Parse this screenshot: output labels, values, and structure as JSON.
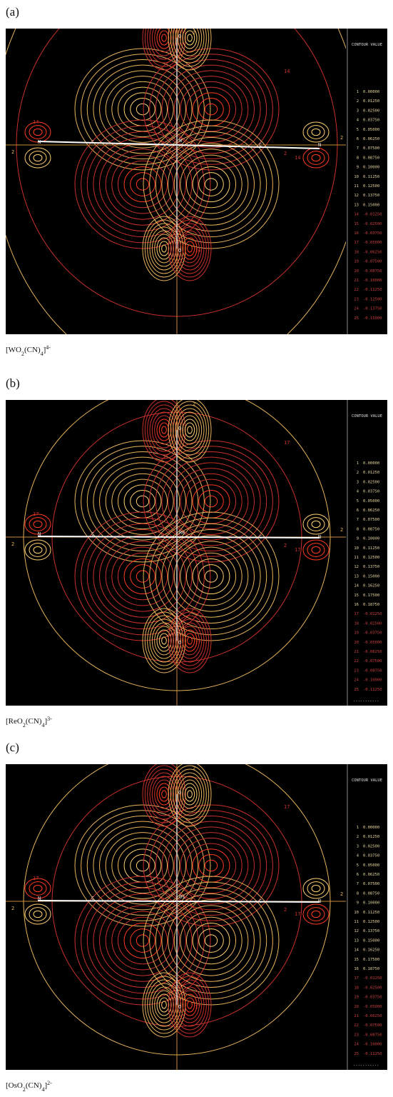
{
  "panels": [
    {
      "label": "(a)",
      "legend_title": "CONTOUR VALUE",
      "legend": [
        [
          "1",
          "0.00000"
        ],
        [
          "2",
          "0.01250"
        ],
        [
          "3",
          "0.02500"
        ],
        [
          "4",
          "0.03750"
        ],
        [
          "5",
          "0.05000"
        ],
        [
          "6",
          "0.06250"
        ],
        [
          "7",
          "0.07500"
        ],
        [
          "8",
          "0.08750"
        ],
        [
          "9",
          "0.10000"
        ],
        [
          "10",
          "0.11250"
        ],
        [
          "11",
          "0.12500"
        ],
        [
          "12",
          "0.13750"
        ],
        [
          "13",
          "0.15000"
        ],
        [
          "14",
          "-0.01250"
        ],
        [
          "15",
          "-0.02500"
        ],
        [
          "16",
          "-0.03750"
        ],
        [
          "17",
          "-0.05000"
        ],
        [
          "18",
          "-0.06250"
        ],
        [
          "19",
          "-0.07500"
        ],
        [
          "20",
          "-0.08750"
        ],
        [
          "21",
          "-0.10000"
        ],
        [
          "22",
          "-0.11250"
        ],
        [
          "23",
          "-0.12500"
        ],
        [
          "24",
          "-0.13750"
        ],
        [
          "25",
          "-0.15000"
        ]
      ],
      "plot_labels": [
        "2",
        "14",
        "14",
        "2",
        "14",
        "14",
        "2",
        "2"
      ],
      "atoms": [
        "O",
        "W",
        "O",
        "C",
        "C",
        "N",
        "N"
      ],
      "caption": [
        "[WO",
        "2",
        "(CN)",
        "4",
        "]",
        "4-"
      ]
    },
    {
      "label": "(b)",
      "legend_title": "CONTOUR VALUE",
      "legend": [
        [
          "1",
          "0.00000"
        ],
        [
          "2",
          "0.01250"
        ],
        [
          "3",
          "0.02500"
        ],
        [
          "4",
          "0.03750"
        ],
        [
          "5",
          "0.05000"
        ],
        [
          "6",
          "0.06250"
        ],
        [
          "7",
          "0.07500"
        ],
        [
          "8",
          "0.08750"
        ],
        [
          "9",
          "0.10000"
        ],
        [
          "10",
          "0.11250"
        ],
        [
          "11",
          "0.12500"
        ],
        [
          "12",
          "0.13750"
        ],
        [
          "13",
          "0.15000"
        ],
        [
          "14",
          "0.16250"
        ],
        [
          "15",
          "0.17500"
        ],
        [
          "16",
          "0.18750"
        ],
        [
          "17",
          "-0.01250"
        ],
        [
          "18",
          "-0.02500"
        ],
        [
          "19",
          "-0.03750"
        ],
        [
          "20",
          "-0.05000"
        ],
        [
          "21",
          "-0.06250"
        ],
        [
          "22",
          "-0.07500"
        ],
        [
          "23",
          "-0.08750"
        ],
        [
          "24",
          "-0.10000"
        ],
        [
          "25",
          "-0.11250"
        ]
      ],
      "legend_more": "...........",
      "plot_labels": [
        "2",
        "17",
        "17",
        "2",
        "17",
        "17",
        "2",
        "2"
      ],
      "atoms": [
        "O",
        "Re",
        "O",
        "C",
        "C",
        "N",
        "N"
      ],
      "caption": [
        "[ReO",
        "2",
        "(CN)",
        "4",
        "]",
        "3-"
      ]
    },
    {
      "label": "(c)",
      "legend_title": "CONTOUR VALUE",
      "legend": [
        [
          "1",
          "0.00000"
        ],
        [
          "2",
          "0.01250"
        ],
        [
          "3",
          "0.02500"
        ],
        [
          "4",
          "0.03750"
        ],
        [
          "5",
          "0.05000"
        ],
        [
          "6",
          "0.06250"
        ],
        [
          "7",
          "0.07500"
        ],
        [
          "8",
          "0.08750"
        ],
        [
          "9",
          "0.10000"
        ],
        [
          "10",
          "0.11250"
        ],
        [
          "11",
          "0.12500"
        ],
        [
          "12",
          "0.13750"
        ],
        [
          "13",
          "0.15000"
        ],
        [
          "14",
          "0.16250"
        ],
        [
          "15",
          "0.17500"
        ],
        [
          "16",
          "0.18750"
        ],
        [
          "17",
          "-0.01250"
        ],
        [
          "18",
          "-0.02500"
        ],
        [
          "19",
          "-0.03750"
        ],
        [
          "20",
          "-0.05000"
        ],
        [
          "21",
          "-0.06250"
        ],
        [
          "22",
          "-0.07500"
        ],
        [
          "23",
          "-0.08750"
        ],
        [
          "24",
          "-0.10000"
        ],
        [
          "25",
          "-0.11250"
        ]
      ],
      "legend_more": "...........",
      "plot_labels": [
        "2",
        "17",
        "17",
        "2",
        "17",
        "17",
        "2",
        "2"
      ],
      "atoms": [
        "O",
        "Os",
        "O",
        "C",
        "C",
        "N",
        "N"
      ],
      "caption": [
        "[OsO",
        "2",
        "(CN)",
        "4",
        "]",
        "2-"
      ]
    }
  ]
}
